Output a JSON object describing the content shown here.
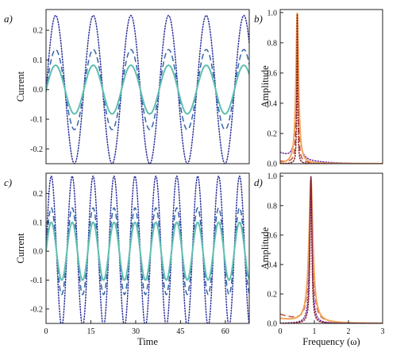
{
  "chart_data": [
    {
      "panel": "a)",
      "type": "line",
      "xlabel": "",
      "ylabel": "Current",
      "xlim": [
        0,
        68
      ],
      "ylim": [
        -0.25,
        0.27
      ],
      "yticks": [
        "-0.2",
        "-0.1",
        "0.0",
        "0.1",
        "0.2"
      ],
      "period": 12.6,
      "phase_x": 3.2,
      "series": [
        {
          "style": "dotted",
          "color": "#2a2f9a",
          "amplitude": 0.25
        },
        {
          "style": "dashed",
          "color": "#3166a8",
          "amplitude": 0.135
        },
        {
          "style": "solid",
          "color": "#5fbfb0",
          "amplitude": 0.082
        }
      ]
    },
    {
      "panel": "b)",
      "type": "line",
      "xlabel": "",
      "ylabel": "Amplitude",
      "xlim": [
        0,
        3
      ],
      "ylim": [
        0,
        1.02
      ],
      "yticks": [
        "0.0",
        "0.2",
        "0.4",
        "0.6",
        "0.8",
        "1.0"
      ],
      "peak": 0.5,
      "series": [
        {
          "style": "dotted",
          "color": "#6a2aa3",
          "baseline": 0.07,
          "width": 0.04
        },
        {
          "style": "dashed",
          "color": "#c24a3a",
          "baseline": 0.015,
          "width": 0.025
        },
        {
          "style": "solid",
          "color": "#f2a65a",
          "baseline": 0.0,
          "width": 0.045
        },
        {
          "style": "dotted",
          "color": "#8b1a1a",
          "baseline": 0.0,
          "width": 0.015
        }
      ]
    },
    {
      "panel": "c)",
      "type": "line",
      "xlabel": "Time",
      "ylabel": "Current",
      "xlim": [
        0,
        68
      ],
      "xticks": [
        "0",
        "15",
        "30",
        "45",
        "60"
      ],
      "ylim": [
        -0.25,
        0.27
      ],
      "yticks": [
        "-0.2",
        "-0.1",
        "0.0",
        "0.1",
        "0.2"
      ],
      "period": 7.0,
      "phase_x": 1.75,
      "series": [
        {
          "style": "dotted",
          "color": "#2a2f9a",
          "amplitude": 0.26
        },
        {
          "style": "dashed",
          "color": "#3166a8",
          "amplitude": 0.15
        },
        {
          "style": "solid",
          "color": "#5fbfb0",
          "amplitude": 0.1
        }
      ]
    },
    {
      "panel": "d)",
      "type": "line",
      "xlabel": "Frequency (ω)",
      "ylabel": "Amplitude",
      "xlim": [
        0,
        3
      ],
      "xticks": [
        "0",
        "1",
        "2",
        "3"
      ],
      "ylim": [
        0,
        1.02
      ],
      "yticks": [
        "0.0",
        "0.2",
        "0.4",
        "0.6",
        "0.8",
        "1.0"
      ],
      "peak": 0.9,
      "series": [
        {
          "style": "dashed",
          "color": "#c24a3a",
          "baseline": 0.06,
          "width": 0.06
        },
        {
          "style": "solid",
          "color": "#f2a65a",
          "baseline": 0.03,
          "width": 0.07
        },
        {
          "style": "dotted",
          "color": "#6a2aa3",
          "baseline": 0.0,
          "width": 0.04
        },
        {
          "style": "dotted",
          "color": "#8b1a1a",
          "baseline": 0.0,
          "width": 0.03
        }
      ]
    }
  ]
}
